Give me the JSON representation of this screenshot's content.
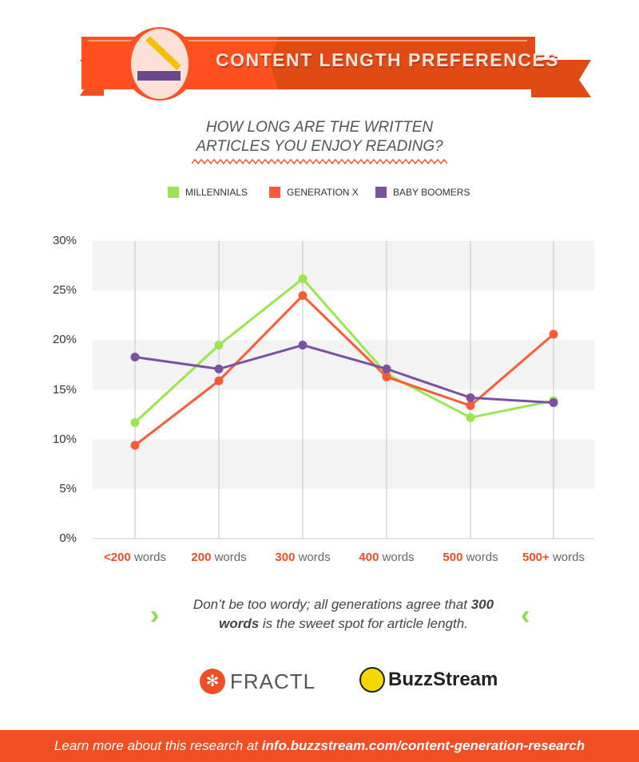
{
  "header": {
    "title": "CONTENT LENGTH PREFERENCES",
    "question_line1": "HOW LONG ARE THE WRITTEN",
    "question_line2": "ARTICLES YOU ENJOY READING?"
  },
  "colors": {
    "orange": "#f04e23",
    "green": "#9ae550",
    "purple": "#7b52a3"
  },
  "chart_data": {
    "type": "line",
    "categories": [
      "<200 words",
      "200 words",
      "300 words",
      "400 words",
      "500 words",
      "500+ words"
    ],
    "category_numbers": [
      "<200",
      "200",
      "300",
      "400",
      "500",
      "500+"
    ],
    "category_unit": "words",
    "yticks": [
      "0%",
      "5%",
      "10%",
      "15%",
      "20%",
      "25%",
      "30%"
    ],
    "ylim": [
      0,
      30
    ],
    "series": [
      {
        "name": "MILLENNIALS",
        "color": "#9ae550",
        "values": [
          11.7,
          19.5,
          26.2,
          16.6,
          12.2,
          13.9
        ]
      },
      {
        "name": "GENERATION X",
        "color": "#ff5a36",
        "values": [
          9.4,
          15.9,
          24.5,
          16.3,
          13.4,
          20.6
        ]
      },
      {
        "name": "BABY BOOMERS",
        "color": "#7b52a3",
        "values": [
          18.3,
          17.1,
          19.5,
          17.1,
          14.2,
          13.7
        ]
      }
    ],
    "legend": "top-center"
  },
  "note": {
    "part1": "Don’t be too wordy; all generations agree that ",
    "bold1": "300 words",
    "part2": " is the sweet spot for article length."
  },
  "logos": {
    "fractl": "FRACTL",
    "buzzstream": "BuzzStream"
  },
  "footer": {
    "text": "Learn more about this research at ",
    "link": "info.buzzstream.com/content-generation-research"
  }
}
